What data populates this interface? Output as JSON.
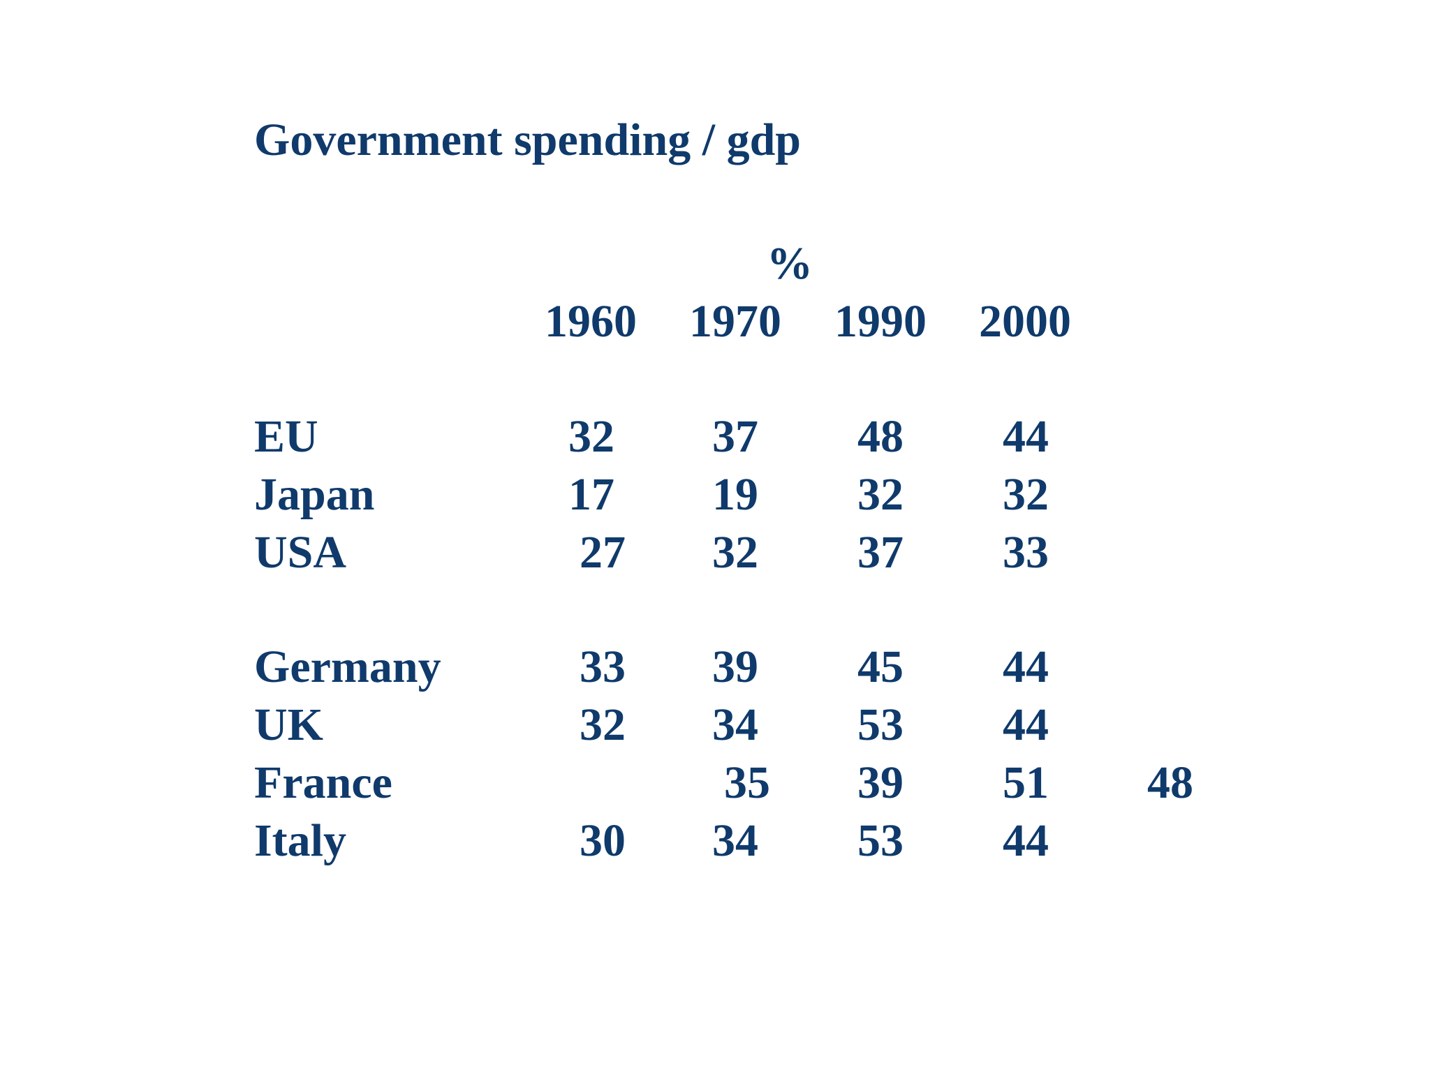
{
  "title": "Government spending / gdp",
  "unit": "%",
  "years": [
    "1960",
    "1970",
    "1990",
    "2000"
  ],
  "rows": [
    {
      "label": "EU",
      "values": [
        "32",
        "37",
        "48",
        "44"
      ]
    },
    {
      "label": "Japan",
      "values": [
        "17",
        "19",
        "32",
        "32"
      ]
    },
    {
      "label": "USA",
      "values": [
        "27",
        "32",
        "37",
        "33"
      ]
    },
    {
      "label": "Germany",
      "values": [
        "33",
        "39",
        "45",
        "44"
      ]
    },
    {
      "label": "UK",
      "values": [
        "32",
        "34",
        "53",
        "44"
      ]
    },
    {
      "label": "France",
      "values": [
        "35",
        "39",
        "51",
        "48"
      ]
    },
    {
      "label": "Italy",
      "values": [
        "30",
        "34",
        "53",
        "44"
      ]
    }
  ]
}
